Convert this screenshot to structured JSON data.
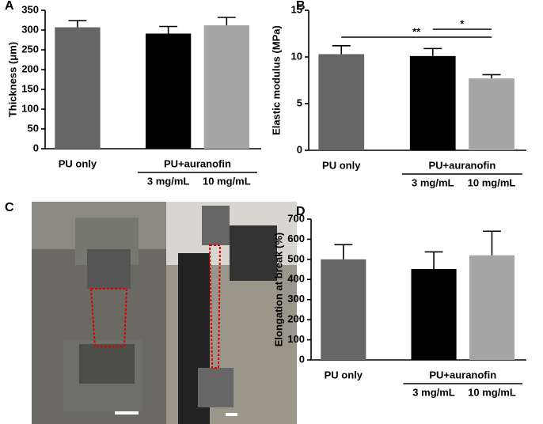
{
  "chart_data": [
    {
      "type": "bar",
      "panel_label": "A",
      "y_label": "Thickness (μm)",
      "categories": [
        "PU only",
        "3 mg/mL",
        "10 mg/mL"
      ],
      "group_label": "PU+auranofin",
      "values": [
        307,
        291,
        312
      ],
      "errors": [
        17,
        18,
        20
      ],
      "colors": [
        "#666666",
        "#000000",
        "#a6a6a6"
      ],
      "ylim": [
        0,
        350
      ],
      "yticks": [
        0,
        50,
        100,
        150,
        200,
        250,
        300,
        350
      ]
    },
    {
      "type": "bar",
      "panel_label": "B",
      "y_label": "Elastic  modulus (MPa)",
      "categories": [
        "PU only",
        "3 mg/mL",
        "10 mg/mL"
      ],
      "group_label": "PU+auranofin",
      "values": [
        10.3,
        10.1,
        7.7
      ],
      "errors": [
        0.9,
        0.8,
        0.4
      ],
      "colors": [
        "#666666",
        "#000000",
        "#a6a6a6"
      ],
      "ylim": [
        0,
        15
      ],
      "yticks": [
        0,
        5,
        10,
        15
      ],
      "significance": [
        {
          "label": "*",
          "between": [
            "3 mg/mL",
            "10 mg/mL"
          ]
        },
        {
          "label": "**",
          "between": [
            "PU only",
            "10 mg/mL"
          ]
        }
      ]
    },
    {
      "type": "bar",
      "panel_label": "D",
      "y_label": "Elongation at break (%)",
      "categories": [
        "PU only",
        "3 mg/mL",
        "10 mg/mL"
      ],
      "group_label": "PU+auranofin",
      "values": [
        500,
        452,
        520
      ],
      "errors": [
        73,
        85,
        120
      ],
      "colors": [
        "#666666",
        "#000000",
        "#a6a6a6"
      ],
      "ylim": [
        0,
        700
      ],
      "yticks": [
        0,
        100,
        200,
        300,
        400,
        500,
        600,
        700
      ]
    }
  ],
  "photo": {
    "panel_label": "C"
  }
}
